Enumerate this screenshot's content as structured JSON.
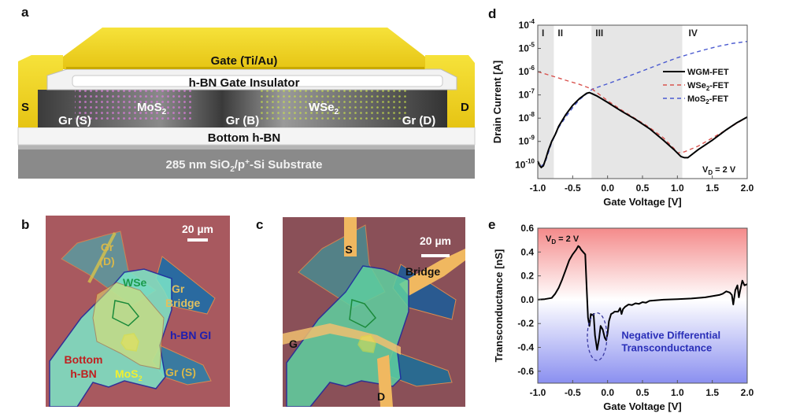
{
  "figure": {
    "panels": {
      "a": {
        "letter": "a"
      },
      "b": {
        "letter": "b"
      },
      "c": {
        "letter": "c"
      },
      "d": {
        "letter": "d"
      },
      "e": {
        "letter": "e"
      }
    }
  },
  "schematic": {
    "gate": "Gate (Ti/Au)",
    "gate_insulator": "h-BN Gate Insulator",
    "source": "S",
    "drain": "D",
    "gr_s": "Gr (S)",
    "gr_b": "Gr (B)",
    "gr_d": "Gr (D)",
    "mos2": "MoS",
    "mos2_sub": "2",
    "wse2": "WSe",
    "wse2_sub": "2",
    "bottom_hbn": "Bottom h-BN",
    "substrate_pre": "285 nm SiO",
    "substrate_sub": "2",
    "substrate_mid": "/p",
    "substrate_sup": "+",
    "substrate_post": "-Si Substrate",
    "colors": {
      "gold": "#f2d81c",
      "mos2_atom": "#d57bd6",
      "wse2_atom": "#c8e04a",
      "substrate": "#8a8a8a"
    }
  },
  "micrograph_b": {
    "scale_bar": "20 µm",
    "labels": {
      "gr_d_1": "Gr",
      "gr_d_2": "(D)",
      "wse2": "WSe",
      "gr_bridge_1": "Gr",
      "gr_bridge_2": "Bridge",
      "hbn_gi": "h-BN GI",
      "bottom_1": "Bottom",
      "bottom_2": "h-BN",
      "mos2": "MoS",
      "mos2_sub": "2",
      "gr_s": "Gr (S)"
    }
  },
  "micrograph_c": {
    "scale_bar": "20 µm",
    "labels": {
      "s": "S",
      "bridge": "Bridge",
      "g": "G",
      "d": "D"
    }
  },
  "chart_data": [
    {
      "type": "line",
      "panel": "d",
      "title": "",
      "xlabel": "Gate Voltage [V]",
      "ylabel": "Drain Current [A]",
      "xlim": [
        -1.0,
        2.0
      ],
      "ylim_log10": [
        -10.6,
        -4
      ],
      "yscale": "log",
      "xticks": [
        "-1.0",
        "-0.5",
        "0.0",
        "0.5",
        "1.0",
        "1.5",
        "2.0"
      ],
      "xtick_values": [
        -1.0,
        -0.5,
        0.0,
        0.5,
        1.0,
        1.5,
        2.0
      ],
      "yticks": [
        {
          "base": "10",
          "exp": "-4",
          "log": -4
        },
        {
          "base": "10",
          "exp": "-5",
          "log": -5
        },
        {
          "base": "10",
          "exp": "-6",
          "log": -6
        },
        {
          "base": "10",
          "exp": "-7",
          "log": -7
        },
        {
          "base": "10",
          "exp": "-8",
          "log": -8
        },
        {
          "base": "10",
          "exp": "-9",
          "log": -9
        },
        {
          "base": "10",
          "exp": "-10",
          "log": -10
        }
      ],
      "regions": [
        {
          "label": "I",
          "x0": -1.0,
          "x1": -0.77,
          "shaded": true
        },
        {
          "label": "II",
          "x0": -0.77,
          "x1": -0.23,
          "shaded": false
        },
        {
          "label": "III",
          "x0": -0.23,
          "x1": 1.07,
          "shaded": true
        },
        {
          "label": "IV",
          "x0": 1.07,
          "x1": 2.0,
          "shaded": false
        }
      ],
      "annotation": {
        "text_pre": "V",
        "text_sub": "D",
        "text_post": " = 2 V",
        "position": "bottom-right"
      },
      "legend": {
        "position": "right",
        "entries": [
          {
            "label": "WGM-FET",
            "style": "solid",
            "color": "#000000"
          },
          {
            "label_pre": "WSe",
            "label_sub": "2",
            "label_post": "-FET",
            "style": "dashed",
            "color": "#d9534f"
          },
          {
            "label_pre": "MoS",
            "label_sub": "2",
            "label_post": "-FET",
            "style": "dashed",
            "color": "#4a5ad0"
          }
        ]
      },
      "series": [
        {
          "name": "WGM-FET",
          "color": "#000000",
          "style": "solid",
          "x": [
            -1.0,
            -0.97,
            -0.95,
            -0.92,
            -0.88,
            -0.85,
            -0.8,
            -0.75,
            -0.7,
            -0.6,
            -0.5,
            -0.4,
            -0.3,
            -0.26,
            -0.22,
            -0.15,
            0.0,
            0.2,
            0.4,
            0.6,
            0.8,
            0.95,
            1.05,
            1.1,
            1.15,
            1.3,
            1.5,
            1.7,
            1.85,
            2.0
          ],
          "log_y": [
            -9.85,
            -10.05,
            -10.12,
            -10.05,
            -9.7,
            -9.4,
            -9.0,
            -8.7,
            -8.35,
            -7.85,
            -7.45,
            -7.15,
            -6.93,
            -6.9,
            -6.95,
            -7.05,
            -7.32,
            -7.7,
            -8.05,
            -8.45,
            -8.95,
            -9.35,
            -9.65,
            -9.7,
            -9.7,
            -9.35,
            -8.95,
            -8.5,
            -8.2,
            -7.95
          ]
        },
        {
          "name": "WSe2-FET",
          "color": "#d9534f",
          "style": "dashed",
          "x": [
            -1.0,
            -0.8,
            -0.6,
            -0.4,
            -0.22,
            0.0,
            0.2,
            0.4,
            0.6,
            0.8,
            0.95,
            1.0,
            1.1,
            1.3,
            1.5,
            1.7,
            2.0
          ],
          "log_y": [
            -6.0,
            -6.18,
            -6.37,
            -6.55,
            -6.75,
            -7.25,
            -7.65,
            -8.02,
            -8.4,
            -8.85,
            -9.3,
            -9.5,
            -9.45,
            -9.2,
            -8.85,
            -8.5,
            -7.95
          ]
        },
        {
          "name": "MoS2-FET",
          "color": "#4a5ad0",
          "style": "dashed",
          "x": [
            -0.95,
            -0.9,
            -0.85,
            -0.8,
            -0.7,
            -0.6,
            -0.5,
            -0.4,
            -0.3,
            -0.22,
            0.0,
            0.2,
            0.4,
            0.6,
            0.8,
            1.0,
            1.2,
            1.4,
            1.6,
            1.8,
            2.0
          ],
          "log_y": [
            -10.05,
            -9.95,
            -9.5,
            -9.05,
            -8.4,
            -7.95,
            -7.55,
            -7.2,
            -6.95,
            -6.75,
            -6.52,
            -6.3,
            -6.08,
            -5.85,
            -5.62,
            -5.4,
            -5.22,
            -5.05,
            -4.9,
            -4.78,
            -4.7
          ]
        }
      ]
    },
    {
      "type": "line",
      "panel": "e",
      "title": "",
      "xlabel": "Gate Voltage [V]",
      "ylabel": "Transconductance [nS]",
      "xlim": [
        -1.0,
        2.0
      ],
      "ylim": [
        -0.7,
        0.6
      ],
      "xticks": [
        "-1.0",
        "-0.5",
        "0.0",
        "0.5",
        "1.0",
        "1.5",
        "2.0"
      ],
      "xtick_values": [
        -1.0,
        -0.5,
        0.0,
        0.5,
        1.0,
        1.5,
        2.0
      ],
      "yticks": [
        "0.6",
        "0.4",
        "0.2",
        "0.0",
        "-0.2",
        "-0.4",
        "-0.6"
      ],
      "ytick_values": [
        0.6,
        0.4,
        0.2,
        0.0,
        -0.2,
        -0.4,
        -0.6
      ],
      "background": {
        "top_color": "#f48a8a",
        "bottom_color": "#8a8ff0",
        "mid_color": "#ffffff"
      },
      "annotation": {
        "text_pre": "V",
        "text_sub": "D",
        "text_post": " = 2 V",
        "position": "top-left"
      },
      "ndt_label_1": "Negative Differential",
      "ndt_label_2": "Transconductance",
      "ndt_color": "#2a2fb8",
      "ndt_circle": {
        "cx": -0.15,
        "cy": -0.31,
        "rx_v": 0.14,
        "ry_ns": 0.2
      },
      "series": [
        {
          "name": "Transconductance",
          "color": "#000000",
          "x": [
            -1.0,
            -0.9,
            -0.8,
            -0.75,
            -0.7,
            -0.65,
            -0.6,
            -0.55,
            -0.5,
            -0.45,
            -0.42,
            -0.4,
            -0.38,
            -0.35,
            -0.32,
            -0.3,
            -0.28,
            -0.26,
            -0.24,
            -0.22,
            -0.2,
            -0.18,
            -0.15,
            -0.12,
            -0.1,
            -0.07,
            -0.04,
            -0.02,
            0.0,
            0.02,
            0.05,
            0.08,
            0.1,
            0.15,
            0.18,
            0.2,
            0.22,
            0.25,
            0.3,
            0.35,
            0.4,
            0.45,
            0.5,
            0.55,
            0.6,
            0.8,
            1.0,
            1.2,
            1.4,
            1.5,
            1.6,
            1.65,
            1.7,
            1.75,
            1.78,
            1.8,
            1.83,
            1.86,
            1.88,
            1.9,
            1.93,
            1.96,
            2.0
          ],
          "y": [
            0.0,
            0.005,
            0.015,
            0.05,
            0.1,
            0.17,
            0.25,
            0.33,
            0.38,
            0.42,
            0.45,
            0.44,
            0.42,
            0.4,
            0.38,
            0.1,
            -0.15,
            -0.22,
            -0.12,
            -0.13,
            -0.12,
            -0.3,
            -0.42,
            -0.32,
            -0.22,
            -0.25,
            -0.32,
            -0.34,
            -0.28,
            -0.18,
            -0.12,
            -0.11,
            -0.1,
            -0.1,
            -0.07,
            -0.12,
            -0.08,
            -0.06,
            -0.04,
            -0.045,
            -0.03,
            -0.035,
            -0.02,
            -0.025,
            -0.01,
            0.0,
            0.005,
            0.01,
            0.02,
            0.03,
            0.04,
            0.05,
            0.07,
            0.06,
            0.04,
            -0.04,
            0.08,
            0.12,
            0.02,
            0.08,
            0.16,
            0.12,
            0.13
          ]
        }
      ]
    }
  ]
}
